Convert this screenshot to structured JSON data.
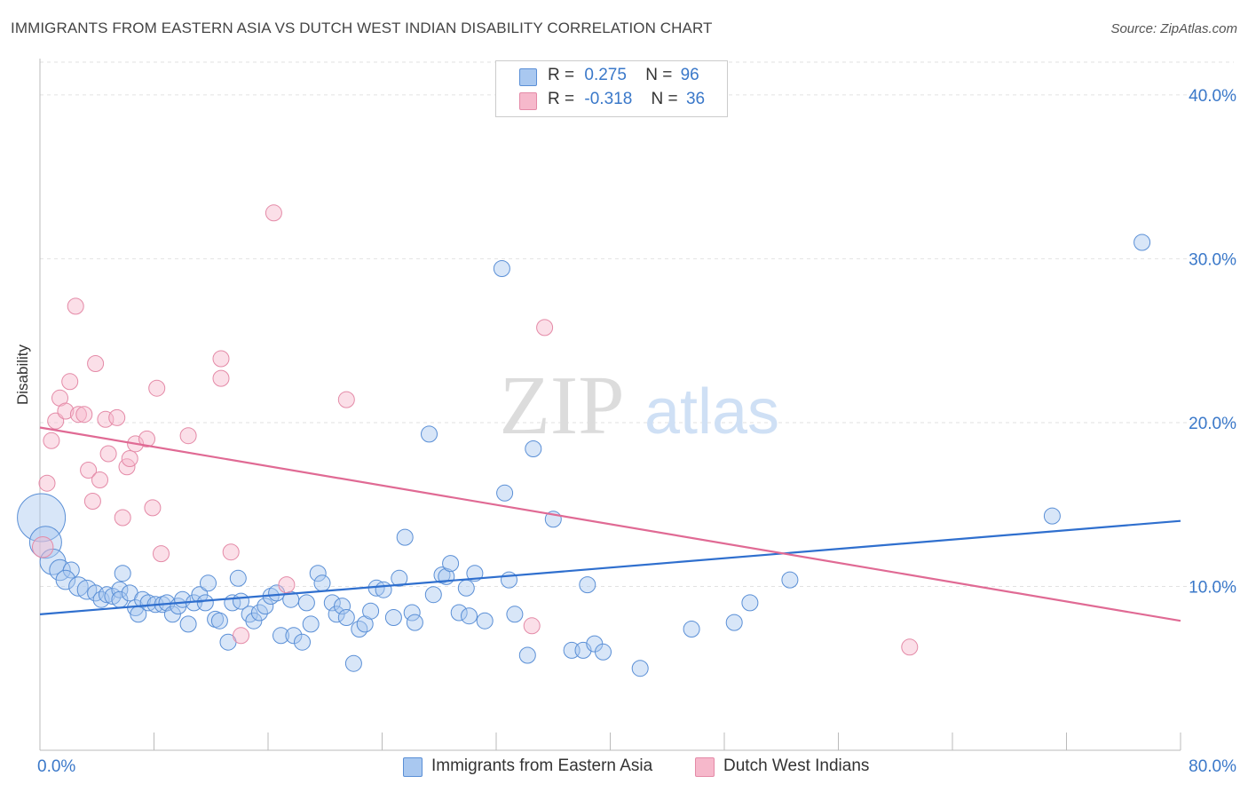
{
  "title": "IMMIGRANTS FROM EASTERN ASIA VS DUTCH WEST INDIAN DISABILITY CORRELATION CHART",
  "source": "Source: ZipAtlas.com",
  "watermark": {
    "zip": "ZIP",
    "atlas": "atlas"
  },
  "legend": {
    "rows": [
      {
        "r_label": "R =",
        "r_value": "0.275",
        "n_label": "N =",
        "n_value": "96",
        "color": "#a9c8f0"
      },
      {
        "r_label": "R =",
        "r_value": "-0.318",
        "n_label": "N =",
        "n_value": "36",
        "color": "#f6b8cb"
      }
    ]
  },
  "chart_data": {
    "type": "scatter",
    "title": "IMMIGRANTS FROM EASTERN ASIA VS DUTCH WEST INDIAN DISABILITY CORRELATION CHART",
    "xlabel": "",
    "ylabel": "Disability",
    "xlim": [
      0,
      80
    ],
    "ylim": [
      0,
      42
    ],
    "x_tick_labels": [
      "0.0%",
      "80.0%"
    ],
    "y_ticks": [
      10,
      20,
      30,
      40
    ],
    "y_tick_labels": [
      "10.0%",
      "20.0%",
      "30.0%",
      "40.0%"
    ],
    "grid": true,
    "legend_position": "top-center",
    "series": [
      {
        "name": "Immigrants from Eastern Asia",
        "color": "#a9c8f0",
        "stroke": "#5a8fd6",
        "line_color": "#2f6fce",
        "trend": [
          [
            0,
            8.3
          ],
          [
            80,
            14.0
          ]
        ],
        "points": [
          [
            0.1,
            14.2,
            3
          ],
          [
            0.4,
            12.7,
            2
          ],
          [
            0.9,
            11.5,
            1.6
          ],
          [
            1.4,
            11.0,
            1.3
          ],
          [
            2.2,
            11.0,
            1
          ],
          [
            1.8,
            10.4,
            1.2
          ],
          [
            2.7,
            10.0,
            1.2
          ],
          [
            3.3,
            9.8,
            1.2
          ],
          [
            3.9,
            9.6,
            1
          ],
          [
            4.3,
            9.2,
            1
          ],
          [
            4.7,
            9.5,
            1
          ],
          [
            5.1,
            9.4,
            1
          ],
          [
            5.6,
            9.8,
            1
          ],
          [
            5.6,
            9.2,
            1
          ],
          [
            5.8,
            10.8,
            1
          ],
          [
            6.3,
            9.6,
            1
          ],
          [
            6.7,
            8.7,
            1
          ],
          [
            6.9,
            8.3,
            1
          ],
          [
            7.2,
            9.2,
            1
          ],
          [
            7.6,
            9.0,
            1
          ],
          [
            8.1,
            8.9,
            1
          ],
          [
            8.6,
            8.9,
            1
          ],
          [
            8.9,
            9.0,
            1
          ],
          [
            9.3,
            8.3,
            1
          ],
          [
            9.7,
            8.8,
            1
          ],
          [
            10.0,
            9.2,
            1
          ],
          [
            10.4,
            7.7,
            1
          ],
          [
            10.8,
            9.0,
            1
          ],
          [
            11.2,
            9.5,
            1
          ],
          [
            11.6,
            9.0,
            1
          ],
          [
            11.8,
            10.2,
            1
          ],
          [
            12.3,
            8.0,
            1
          ],
          [
            12.6,
            7.9,
            1
          ],
          [
            13.2,
            6.6,
            1
          ],
          [
            13.5,
            9.0,
            1
          ],
          [
            13.9,
            10.5,
            1
          ],
          [
            14.1,
            9.1,
            1
          ],
          [
            14.7,
            8.3,
            1
          ],
          [
            15.0,
            7.9,
            1
          ],
          [
            15.4,
            8.4,
            1
          ],
          [
            15.8,
            8.8,
            1
          ],
          [
            16.2,
            9.4,
            1
          ],
          [
            16.6,
            9.6,
            1
          ],
          [
            16.9,
            7.0,
            1
          ],
          [
            17.6,
            9.2,
            1
          ],
          [
            17.8,
            7.0,
            1
          ],
          [
            18.4,
            6.6,
            1
          ],
          [
            18.7,
            9.0,
            1
          ],
          [
            19.0,
            7.7,
            1
          ],
          [
            19.5,
            10.8,
            1
          ],
          [
            19.8,
            10.2,
            1
          ],
          [
            20.5,
            9.0,
            1
          ],
          [
            20.8,
            8.3,
            1
          ],
          [
            21.2,
            8.8,
            1
          ],
          [
            21.5,
            8.1,
            1
          ],
          [
            22.0,
            5.3,
            1
          ],
          [
            22.4,
            7.4,
            1
          ],
          [
            22.8,
            7.7,
            1
          ],
          [
            23.2,
            8.5,
            1
          ],
          [
            23.6,
            9.9,
            1
          ],
          [
            24.1,
            9.8,
            1
          ],
          [
            24.8,
            8.1,
            1
          ],
          [
            25.2,
            10.5,
            1
          ],
          [
            25.6,
            13.0,
            1
          ],
          [
            26.1,
            8.4,
            1
          ],
          [
            26.3,
            7.8,
            1
          ],
          [
            27.3,
            19.3,
            1
          ],
          [
            27.6,
            9.5,
            1
          ],
          [
            28.2,
            10.7,
            1
          ],
          [
            28.5,
            10.6,
            1
          ],
          [
            28.8,
            11.4,
            1
          ],
          [
            29.4,
            8.4,
            1
          ],
          [
            29.9,
            9.9,
            1
          ],
          [
            30.1,
            8.2,
            1
          ],
          [
            30.5,
            10.8,
            1
          ],
          [
            31.2,
            7.9,
            1
          ],
          [
            32.4,
            29.4,
            1
          ],
          [
            32.6,
            15.7,
            1
          ],
          [
            32.9,
            10.4,
            1
          ],
          [
            33.3,
            8.3,
            1
          ],
          [
            34.2,
            5.8,
            1
          ],
          [
            34.6,
            18.4,
            1
          ],
          [
            36.0,
            14.1,
            1
          ],
          [
            37.3,
            6.1,
            1
          ],
          [
            38.1,
            6.1,
            1
          ],
          [
            38.4,
            10.1,
            1
          ],
          [
            38.9,
            6.5,
            1
          ],
          [
            39.5,
            6.0,
            1
          ],
          [
            42.1,
            5.0,
            1
          ],
          [
            45.7,
            7.4,
            1
          ],
          [
            48.7,
            7.8,
            1
          ],
          [
            49.8,
            9.0,
            1
          ],
          [
            52.6,
            10.4,
            1
          ],
          [
            71.0,
            14.3,
            1
          ],
          [
            77.3,
            31.0,
            1
          ]
        ]
      },
      {
        "name": "Dutch West Indians",
        "color": "#f6b8cb",
        "stroke": "#e48aa7",
        "line_color": "#e06a94",
        "trend": [
          [
            0,
            19.7
          ],
          [
            80,
            7.9
          ]
        ],
        "points": [
          [
            0.2,
            12.4,
            1.3
          ],
          [
            0.5,
            16.3,
            1
          ],
          [
            0.8,
            18.9,
            1
          ],
          [
            1.1,
            20.1,
            1
          ],
          [
            1.4,
            21.5,
            1
          ],
          [
            1.8,
            20.7,
            1
          ],
          [
            2.1,
            22.5,
            1
          ],
          [
            2.5,
            27.1,
            1
          ],
          [
            2.7,
            20.5,
            1
          ],
          [
            3.1,
            20.5,
            1
          ],
          [
            3.4,
            17.1,
            1
          ],
          [
            3.7,
            15.2,
            1
          ],
          [
            3.9,
            23.6,
            1
          ],
          [
            4.2,
            16.5,
            1
          ],
          [
            4.6,
            20.2,
            1
          ],
          [
            4.8,
            18.1,
            1
          ],
          [
            5.4,
            20.3,
            1
          ],
          [
            5.8,
            14.2,
            1
          ],
          [
            6.1,
            17.3,
            1
          ],
          [
            6.3,
            17.8,
            1
          ],
          [
            6.7,
            18.7,
            1
          ],
          [
            7.5,
            19.0,
            1
          ],
          [
            7.9,
            14.8,
            1
          ],
          [
            8.2,
            22.1,
            1
          ],
          [
            8.5,
            12.0,
            1
          ],
          [
            10.4,
            19.2,
            1
          ],
          [
            12.7,
            22.7,
            1
          ],
          [
            12.7,
            23.9,
            1
          ],
          [
            13.4,
            12.1,
            1
          ],
          [
            14.1,
            7.0,
            1
          ],
          [
            16.4,
            32.8,
            1
          ],
          [
            17.3,
            10.1,
            1
          ],
          [
            21.5,
            21.4,
            1
          ],
          [
            34.5,
            7.6,
            1
          ],
          [
            35.4,
            25.8,
            1
          ],
          [
            61.0,
            6.3,
            1
          ]
        ]
      }
    ]
  }
}
